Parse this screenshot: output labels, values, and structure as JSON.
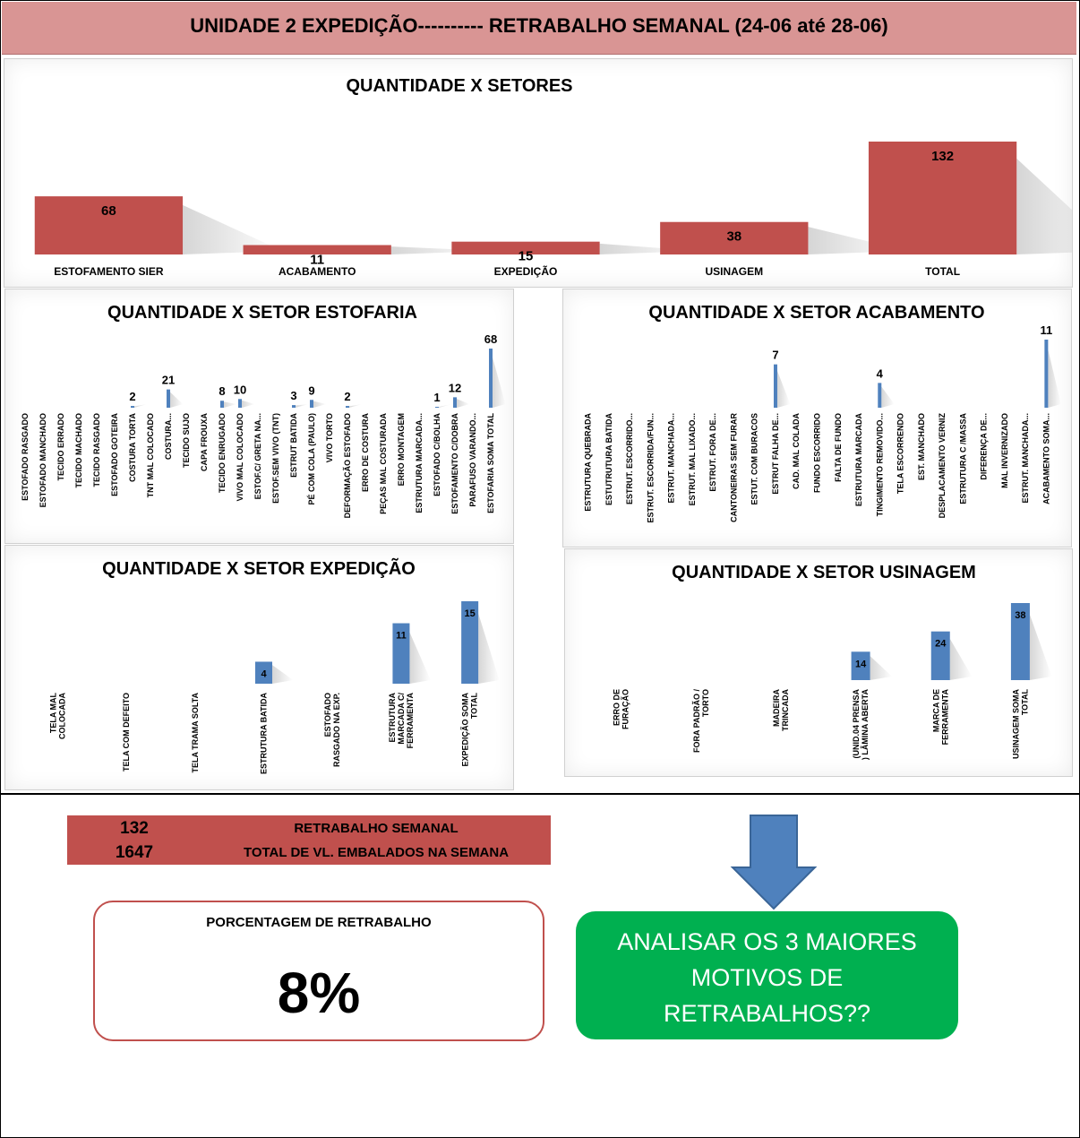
{
  "header": {
    "title": "UNIDADE 2 EXPEDIÇÃO----------    RETRABALHO SEMANAL (24-06 até 28-06)"
  },
  "colors": {
    "header_bg": "#d99594",
    "bar_red": "#c0504d",
    "bar_blue": "#4f81bd",
    "action_green": "#00b050",
    "arrow_blue": "#4f81bd"
  },
  "chart_data": [
    {
      "id": "setores",
      "type": "bar",
      "title": "QUANTIDADE X SETORES",
      "categories": [
        "ESTOFAMENTO SIER",
        "ACABAMENTO",
        "EXPEDIÇÃO",
        "USINAGEM",
        "TOTAL"
      ],
      "values": [
        68,
        11,
        15,
        38,
        132
      ],
      "color": "#c0504d",
      "ylim": [
        0,
        132
      ],
      "grid": false,
      "legend": "none"
    },
    {
      "id": "estofaria",
      "type": "bar",
      "title": "QUANTIDADE X SETOR ESTOFARIA",
      "categories": [
        "ESTOFADO RASGADO",
        "ESTOFADO MANCHADO",
        "TECIDO ERRADO",
        "TECIDO MACHADO",
        "TECIDO RASGADO",
        "ESTOFADO GOTEIRA",
        "COSTURA TORTA",
        "TNT MAL COLOCADO",
        "COSTURA...",
        "TECIDO SUJO",
        "CAPA FROUXA",
        "TECIDO ENRUGADO",
        "VIVO MAL COLOCADO",
        "ESTOF.C/ GRETA NA...",
        "ESTOF.SEM VIVO (TNT)",
        "ESTRUT BATIDA",
        "PÉ COM COLA (PAULO)",
        "VIVO TORTO",
        "DEFORMAÇÃO ESTOFADO",
        "ERRO DE COSTURA",
        "PEÇAS MAL COSTURADA",
        "ERRO MONTAGEM",
        "ESTRUTURA MARCADA...",
        "ESTOFADO C/BOLHA",
        "ESTOFAMENTO C/DOBRA",
        "PARAFUSO VARANDO...",
        "ESTOFARIA SOMA TOTAL"
      ],
      "values": [
        0,
        0,
        0,
        0,
        0,
        0,
        2,
        0,
        21,
        0,
        0,
        8,
        10,
        0,
        0,
        3,
        9,
        0,
        2,
        0,
        0,
        0,
        0,
        1,
        12,
        0,
        68
      ],
      "color": "#4f81bd",
      "ylim": [
        0,
        68
      ],
      "grid": false,
      "legend": "none"
    },
    {
      "id": "acabamento",
      "type": "bar",
      "title": "QUANTIDADE X SETOR ACABAMENTO",
      "categories": [
        "ESTRUTURA QUEBRADA",
        "ESTUTRUTURA BATIDA",
        "ESTRUT. ESCORRIDO...",
        "ESTRUT. ESCORRIDA/FUN...",
        "ESTRUT. MANCHADA...",
        "ESTRUT. MAL LIXADO...",
        "ESTRUT. FORA DE...",
        "CANTONEIRAS SEM FURAR",
        "ESTUT. COM BURACOS",
        "ESTRUT FALHA DE...",
        "CAD. MAL COLADA",
        "FUNDO ESCORRIDO",
        "FALTA DE FUNDO",
        "ESTRUTURA MARCADA",
        "TINGIMENTO REMOVIDO...",
        "TELA ESCORRENDO",
        "EST. MANCHADO",
        "DESPLACAMENTO VERNIZ",
        "ESTRUTURA C /MASSA",
        "DIFERENÇA DE...",
        "MAL INVERNIZADO",
        "ESTRUT. MANCHADA...",
        "ACABAMENTO SOMA..."
      ],
      "values": [
        0,
        0,
        0,
        0,
        0,
        0,
        0,
        0,
        0,
        7,
        0,
        0,
        0,
        0,
        4,
        0,
        0,
        0,
        0,
        0,
        0,
        0,
        11
      ],
      "color": "#4f81bd",
      "ylim": [
        0,
        11
      ],
      "grid": false,
      "legend": "none"
    },
    {
      "id": "expedicao",
      "type": "bar",
      "title": "QUANTIDADE X SETOR EXPEDIÇÃO",
      "categories": [
        [
          "TELA MAL",
          "COLOCADA"
        ],
        [
          "TELA COM DEFEITO"
        ],
        [
          "TELA TRAMA SOLTA"
        ],
        [
          "ESTRUTURA BATIDA"
        ],
        [
          "ESTOFADO",
          "RASGADO NA EXP."
        ],
        [
          "ESTRUTURA",
          "MARCADA C/",
          "FERRAMENTA"
        ],
        [
          "EXPEDIÇÃO SOMA",
          "TOTAL"
        ]
      ],
      "values": [
        0,
        0,
        0,
        4,
        0,
        11,
        15
      ],
      "color": "#4f81bd",
      "ylim": [
        0,
        15
      ],
      "grid": false,
      "legend": "none"
    },
    {
      "id": "usinagem",
      "type": "bar",
      "title": "QUANTIDADE X SETOR USINAGEM",
      "categories": [
        [
          "ERRO DE",
          "FURAÇÃO"
        ],
        [
          "FORA PADRÃO /",
          "TORTO"
        ],
        [
          "MADEIRA",
          "TRINCADA"
        ],
        [
          "(UNID.04 PRENSA",
          ") LÂMINA ABERTA"
        ],
        [
          "MARCA DE",
          "FERRAMENTA"
        ],
        [
          "USINAGEM SOMA",
          "TOTAL"
        ]
      ],
      "values": [
        0,
        0,
        0,
        14,
        24,
        38
      ],
      "color": "#4f81bd",
      "ylim": [
        0,
        38
      ],
      "grid": false,
      "legend": "none"
    }
  ],
  "summary": {
    "rework_value": "132",
    "rework_label": "RETRABALHO SEMANAL",
    "packed_value": "1647",
    "packed_label": "TOTAL DE VL. EMBALADOS NA SEMANA"
  },
  "percentage": {
    "label": "PORCENTAGEM DE RETRABALHO",
    "value": "8%"
  },
  "action": {
    "text": "ANALISAR OS 3 MAIORES MOTIVOS DE RETRABALHOS??"
  }
}
